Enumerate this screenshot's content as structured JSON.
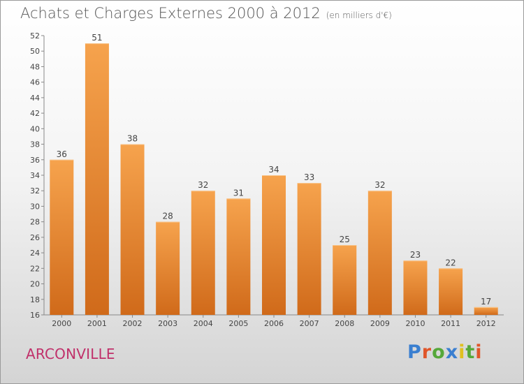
{
  "title": "Achats et Charges Externes 2000 à 2012",
  "unit": "(en milliers d'€)",
  "commune": "ARCONVILLE",
  "logo": {
    "letters": [
      "P",
      "r",
      "o",
      "x",
      "i",
      "t",
      "i"
    ],
    "colors": [
      "#3a7fd0",
      "#e0562a",
      "#55a83a",
      "#3a7fd0",
      "#e0c020",
      "#55a83a",
      "#e0562a"
    ]
  },
  "colors": {
    "bar_top": "#f6a34d",
    "bar_bottom": "#d06a1a",
    "axis": "#888888",
    "text": "#444444"
  },
  "chart_data": {
    "type": "bar",
    "title": "Achats et Charges Externes 2000 à 2012",
    "categories": [
      "2000",
      "2001",
      "2002",
      "2003",
      "2004",
      "2005",
      "2006",
      "2007",
      "2008",
      "2009",
      "2010",
      "2011",
      "2012"
    ],
    "values": [
      36,
      51,
      38,
      28,
      32,
      31,
      34,
      33,
      25,
      32,
      23,
      22,
      17
    ],
    "ylim": [
      16,
      52
    ],
    "yticks": [
      16,
      18,
      20,
      22,
      24,
      26,
      28,
      30,
      32,
      34,
      36,
      38,
      40,
      42,
      44,
      46,
      48,
      50,
      52
    ],
    "grid": false,
    "legend": "none"
  }
}
